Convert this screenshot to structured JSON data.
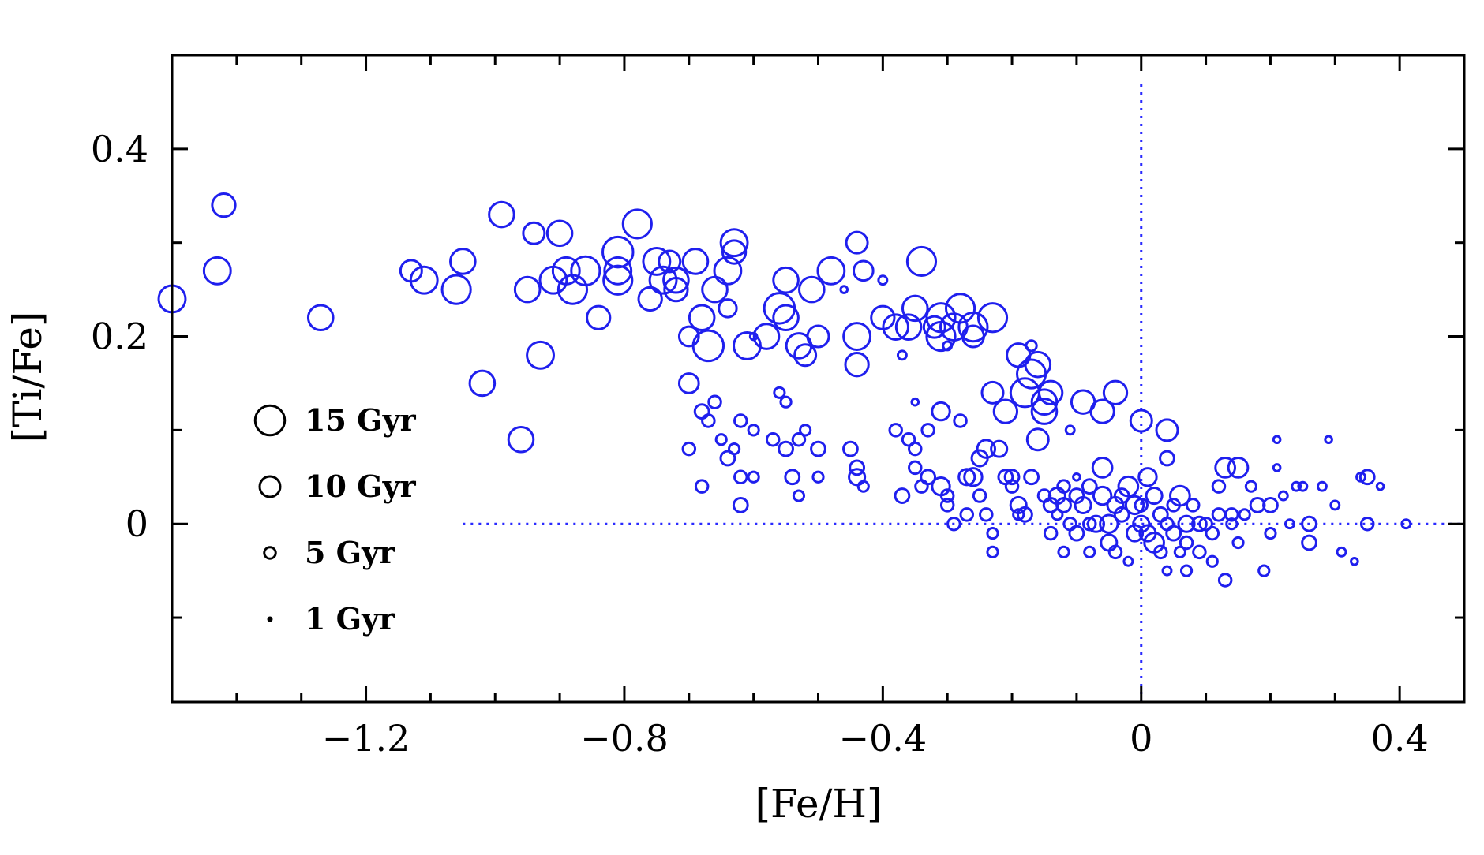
{
  "chart_data": {
    "type": "scatter",
    "title": "",
    "xlabel": "[Fe/H]",
    "ylabel": "[Ti/Fe]",
    "xlim": [
      -1.5,
      0.5
    ],
    "ylim": [
      -0.19,
      0.5
    ],
    "x_ticks": [
      {
        "value": -1.2,
        "label": "−1.2"
      },
      {
        "value": -0.8,
        "label": "−0.8"
      },
      {
        "value": -0.4,
        "label": "−0.4"
      },
      {
        "value": 0,
        "label": "0"
      },
      {
        "value": 0.4,
        "label": "0.4"
      }
    ],
    "y_ticks": [
      {
        "value": 0,
        "label": "0"
      },
      {
        "value": 0.2,
        "label": "0.2"
      },
      {
        "value": 0.4,
        "label": "0.4"
      }
    ],
    "reference_lines": [
      {
        "orientation": "horizontal",
        "value": 0,
        "from": -1.05,
        "to": 0.5,
        "style": "dotted",
        "color": "#2a2aff"
      },
      {
        "orientation": "vertical",
        "value": 0,
        "from": -0.19,
        "to": 0.47,
        "style": "dotted",
        "color": "#2a2aff"
      }
    ],
    "marker_color": "#1f1fee",
    "size_encodes": "age (Gyr)",
    "legend": [
      {
        "label": "15 Gyr",
        "age": 15
      },
      {
        "label": "10 Gyr",
        "age": 10
      },
      {
        "label": "5 Gyr",
        "age": 5
      },
      {
        "label": "1 Gyr",
        "age": 1
      }
    ],
    "legend_position": "left",
    "points": [
      {
        "x": -1.5,
        "y": 0.24,
        "age": 13
      },
      {
        "x": -1.43,
        "y": 0.27,
        "age": 13
      },
      {
        "x": -1.42,
        "y": 0.34,
        "age": 11
      },
      {
        "x": -1.27,
        "y": 0.22,
        "age": 12
      },
      {
        "x": -1.13,
        "y": 0.27,
        "age": 10
      },
      {
        "x": -1.11,
        "y": 0.26,
        "age": 13
      },
      {
        "x": -1.06,
        "y": 0.25,
        "age": 14
      },
      {
        "x": -1.05,
        "y": 0.28,
        "age": 12
      },
      {
        "x": -1.02,
        "y": 0.15,
        "age": 12
      },
      {
        "x": -0.99,
        "y": 0.33,
        "age": 12
      },
      {
        "x": -0.96,
        "y": 0.09,
        "age": 12
      },
      {
        "x": -0.95,
        "y": 0.25,
        "age": 12
      },
      {
        "x": -0.94,
        "y": 0.31,
        "age": 10
      },
      {
        "x": -0.93,
        "y": 0.18,
        "age": 13
      },
      {
        "x": -0.91,
        "y": 0.26,
        "age": 13
      },
      {
        "x": -0.9,
        "y": 0.31,
        "age": 12
      },
      {
        "x": -0.89,
        "y": 0.27,
        "age": 13
      },
      {
        "x": -0.88,
        "y": 0.25,
        "age": 14
      },
      {
        "x": -0.86,
        "y": 0.27,
        "age": 14
      },
      {
        "x": -0.84,
        "y": 0.22,
        "age": 11
      },
      {
        "x": -0.81,
        "y": 0.29,
        "age": 15
      },
      {
        "x": -0.81,
        "y": 0.26,
        "age": 14
      },
      {
        "x": -0.81,
        "y": 0.27,
        "age": 13
      },
      {
        "x": -0.78,
        "y": 0.32,
        "age": 14
      },
      {
        "x": -0.76,
        "y": 0.24,
        "age": 11
      },
      {
        "x": -0.75,
        "y": 0.28,
        "age": 13
      },
      {
        "x": -0.74,
        "y": 0.26,
        "age": 13
      },
      {
        "x": -0.73,
        "y": 0.28,
        "age": 10
      },
      {
        "x": -0.72,
        "y": 0.25,
        "age": 11
      },
      {
        "x": -0.72,
        "y": 0.26,
        "age": 12
      },
      {
        "x": -0.7,
        "y": 0.15,
        "age": 9
      },
      {
        "x": -0.7,
        "y": 0.2,
        "age": 9
      },
      {
        "x": -0.69,
        "y": 0.28,
        "age": 12
      },
      {
        "x": -0.68,
        "y": 0.22,
        "age": 12
      },
      {
        "x": -0.67,
        "y": 0.19,
        "age": 15
      },
      {
        "x": -0.66,
        "y": 0.25,
        "age": 12
      },
      {
        "x": -0.64,
        "y": 0.27,
        "age": 13
      },
      {
        "x": -0.63,
        "y": 0.3,
        "age": 13
      },
      {
        "x": -0.63,
        "y": 0.29,
        "age": 11
      },
      {
        "x": -0.64,
        "y": 0.23,
        "age": 8
      },
      {
        "x": -0.61,
        "y": 0.19,
        "age": 13
      },
      {
        "x": -0.58,
        "y": 0.2,
        "age": 12
      },
      {
        "x": -0.56,
        "y": 0.23,
        "age": 15
      },
      {
        "x": -0.55,
        "y": 0.26,
        "age": 12
      },
      {
        "x": -0.55,
        "y": 0.22,
        "age": 12
      },
      {
        "x": -0.53,
        "y": 0.19,
        "age": 12
      },
      {
        "x": -0.52,
        "y": 0.18,
        "age": 10
      },
      {
        "x": -0.51,
        "y": 0.25,
        "age": 12
      },
      {
        "x": -0.5,
        "y": 0.2,
        "age": 10
      },
      {
        "x": -0.48,
        "y": 0.27,
        "age": 13
      },
      {
        "x": -0.44,
        "y": 0.2,
        "age": 13
      },
      {
        "x": -0.44,
        "y": 0.17,
        "age": 11
      },
      {
        "x": -0.44,
        "y": 0.3,
        "age": 10
      },
      {
        "x": -0.43,
        "y": 0.27,
        "age": 9
      },
      {
        "x": -0.4,
        "y": 0.22,
        "age": 11
      },
      {
        "x": -0.38,
        "y": 0.21,
        "age": 12
      },
      {
        "x": -0.36,
        "y": 0.21,
        "age": 12
      },
      {
        "x": -0.35,
        "y": 0.23,
        "age": 12
      },
      {
        "x": -0.34,
        "y": 0.28,
        "age": 14
      },
      {
        "x": -0.32,
        "y": 0.21,
        "age": 10
      },
      {
        "x": -0.31,
        "y": 0.22,
        "age": 14
      },
      {
        "x": -0.31,
        "y": 0.2,
        "age": 14
      },
      {
        "x": -0.29,
        "y": 0.21,
        "age": 13
      },
      {
        "x": -0.28,
        "y": 0.23,
        "age": 14
      },
      {
        "x": -0.26,
        "y": 0.21,
        "age": 14
      },
      {
        "x": -0.26,
        "y": 0.2,
        "age": 10
      },
      {
        "x": -0.23,
        "y": 0.22,
        "age": 14
      },
      {
        "x": -0.23,
        "y": 0.14,
        "age": 10
      },
      {
        "x": -0.21,
        "y": 0.12,
        "age": 11
      },
      {
        "x": -0.19,
        "y": 0.18,
        "age": 11
      },
      {
        "x": -0.18,
        "y": 0.14,
        "age": 14
      },
      {
        "x": -0.17,
        "y": 0.16,
        "age": 14
      },
      {
        "x": -0.16,
        "y": 0.17,
        "age": 12
      },
      {
        "x": -0.15,
        "y": 0.13,
        "age": 12
      },
      {
        "x": -0.15,
        "y": 0.12,
        "age": 12
      },
      {
        "x": -0.14,
        "y": 0.14,
        "age": 11
      },
      {
        "x": -0.16,
        "y": 0.09,
        "age": 10
      },
      {
        "x": -0.09,
        "y": 0.13,
        "age": 11
      },
      {
        "x": -0.06,
        "y": 0.12,
        "age": 11
      },
      {
        "x": -0.04,
        "y": 0.14,
        "age": 11
      },
      {
        "x": 0.0,
        "y": 0.11,
        "age": 10
      },
      {
        "x": 0.04,
        "y": 0.1,
        "age": 10
      },
      {
        "x": -0.7,
        "y": 0.08,
        "age": 5
      },
      {
        "x": -0.68,
        "y": 0.12,
        "age": 6
      },
      {
        "x": -0.67,
        "y": 0.11,
        "age": 5
      },
      {
        "x": -0.66,
        "y": 0.13,
        "age": 5
      },
      {
        "x": -0.65,
        "y": 0.09,
        "age": 4
      },
      {
        "x": -0.64,
        "y": 0.07,
        "age": 6
      },
      {
        "x": -0.63,
        "y": 0.08,
        "age": 4
      },
      {
        "x": -0.62,
        "y": 0.11,
        "age": 5
      },
      {
        "x": -0.6,
        "y": 0.1,
        "age": 4
      },
      {
        "x": -0.62,
        "y": 0.05,
        "age": 5
      },
      {
        "x": -0.6,
        "y": 0.05,
        "age": 4
      },
      {
        "x": -0.62,
        "y": 0.02,
        "age": 6
      },
      {
        "x": -0.68,
        "y": 0.04,
        "age": 5
      },
      {
        "x": -0.56,
        "y": 0.14,
        "age": 4
      },
      {
        "x": -0.55,
        "y": 0.13,
        "age": 4
      },
      {
        "x": -0.57,
        "y": 0.09,
        "age": 5
      },
      {
        "x": -0.55,
        "y": 0.08,
        "age": 6
      },
      {
        "x": -0.53,
        "y": 0.09,
        "age": 5
      },
      {
        "x": -0.52,
        "y": 0.1,
        "age": 4
      },
      {
        "x": -0.5,
        "y": 0.08,
        "age": 6
      },
      {
        "x": -0.54,
        "y": 0.05,
        "age": 6
      },
      {
        "x": -0.53,
        "y": 0.03,
        "age": 4
      },
      {
        "x": -0.5,
        "y": 0.05,
        "age": 4
      },
      {
        "x": -0.45,
        "y": 0.08,
        "age": 6
      },
      {
        "x": -0.44,
        "y": 0.06,
        "age": 6
      },
      {
        "x": -0.44,
        "y": 0.05,
        "age": 7
      },
      {
        "x": -0.43,
        "y": 0.04,
        "age": 4
      },
      {
        "x": -0.38,
        "y": 0.1,
        "age": 5
      },
      {
        "x": -0.36,
        "y": 0.09,
        "age": 5
      },
      {
        "x": -0.35,
        "y": 0.08,
        "age": 5
      },
      {
        "x": -0.33,
        "y": 0.1,
        "age": 5
      },
      {
        "x": -0.37,
        "y": 0.03,
        "age": 6
      },
      {
        "x": -0.35,
        "y": 0.06,
        "age": 5
      },
      {
        "x": -0.34,
        "y": 0.04,
        "age": 5
      },
      {
        "x": -0.33,
        "y": 0.05,
        "age": 6
      },
      {
        "x": -0.31,
        "y": 0.04,
        "age": 8
      },
      {
        "x": -0.3,
        "y": 0.03,
        "age": 5
      },
      {
        "x": -0.31,
        "y": 0.12,
        "age": 8
      },
      {
        "x": -0.28,
        "y": 0.11,
        "age": 5
      },
      {
        "x": -0.27,
        "y": 0.05,
        "age": 7
      },
      {
        "x": -0.26,
        "y": 0.05,
        "age": 8
      },
      {
        "x": -0.25,
        "y": 0.07,
        "age": 7
      },
      {
        "x": -0.24,
        "y": 0.08,
        "age": 8
      },
      {
        "x": -0.22,
        "y": 0.08,
        "age": 7
      },
      {
        "x": -0.21,
        "y": 0.05,
        "age": 6
      },
      {
        "x": -0.2,
        "y": 0.04,
        "age": 5
      },
      {
        "x": -0.25,
        "y": 0.03,
        "age": 5
      },
      {
        "x": -0.24,
        "y": 0.01,
        "age": 5
      },
      {
        "x": -0.27,
        "y": 0.01,
        "age": 5
      },
      {
        "x": -0.29,
        "y": 0.0,
        "age": 5
      },
      {
        "x": -0.3,
        "y": 0.02,
        "age": 5
      },
      {
        "x": -0.23,
        "y": -0.01,
        "age": 4
      },
      {
        "x": -0.23,
        "y": -0.03,
        "age": 4
      },
      {
        "x": -0.2,
        "y": 0.05,
        "age": 6
      },
      {
        "x": -0.19,
        "y": 0.02,
        "age": 7
      },
      {
        "x": -0.18,
        "y": 0.01,
        "age": 6
      },
      {
        "x": -0.17,
        "y": 0.05,
        "age": 6
      },
      {
        "x": -0.15,
        "y": 0.03,
        "age": 5
      },
      {
        "x": -0.14,
        "y": 0.02,
        "age": 6
      },
      {
        "x": -0.13,
        "y": 0.03,
        "age": 7
      },
      {
        "x": -0.12,
        "y": 0.02,
        "age": 6
      },
      {
        "x": -0.12,
        "y": 0.04,
        "age": 5
      },
      {
        "x": -0.11,
        "y": 0.0,
        "age": 5
      },
      {
        "x": -0.1,
        "y": -0.01,
        "age": 6
      },
      {
        "x": -0.1,
        "y": 0.03,
        "age": 6
      },
      {
        "x": -0.09,
        "y": 0.02,
        "age": 7
      },
      {
        "x": -0.08,
        "y": 0.04,
        "age": 6
      },
      {
        "x": -0.07,
        "y": 0.0,
        "age": 7
      },
      {
        "x": -0.06,
        "y": 0.06,
        "age": 9
      },
      {
        "x": -0.06,
        "y": 0.03,
        "age": 8
      },
      {
        "x": -0.05,
        "y": 0.0,
        "age": 8
      },
      {
        "x": -0.05,
        "y": -0.02,
        "age": 7
      },
      {
        "x": -0.04,
        "y": 0.02,
        "age": 7
      },
      {
        "x": -0.03,
        "y": 0.03,
        "age": 6
      },
      {
        "x": -0.03,
        "y": 0.01,
        "age": 6
      },
      {
        "x": -0.02,
        "y": 0.04,
        "age": 9
      },
      {
        "x": -0.01,
        "y": -0.01,
        "age": 7
      },
      {
        "x": -0.01,
        "y": 0.02,
        "age": 8
      },
      {
        "x": 0.0,
        "y": 0.0,
        "age": 7
      },
      {
        "x": 0.01,
        "y": 0.05,
        "age": 8
      },
      {
        "x": 0.01,
        "y": -0.01,
        "age": 7
      },
      {
        "x": 0.02,
        "y": 0.03,
        "age": 7
      },
      {
        "x": 0.02,
        "y": -0.02,
        "age": 9
      },
      {
        "x": 0.03,
        "y": 0.01,
        "age": 6
      },
      {
        "x": 0.04,
        "y": 0.07,
        "age": 6
      },
      {
        "x": 0.04,
        "y": 0.0,
        "age": 5
      },
      {
        "x": 0.05,
        "y": -0.01,
        "age": 6
      },
      {
        "x": 0.05,
        "y": 0.02,
        "age": 5
      },
      {
        "x": 0.06,
        "y": 0.03,
        "age": 9
      },
      {
        "x": 0.07,
        "y": 0.0,
        "age": 7
      },
      {
        "x": 0.07,
        "y": -0.02,
        "age": 5
      },
      {
        "x": 0.08,
        "y": 0.02,
        "age": 5
      },
      {
        "x": 0.09,
        "y": 0.0,
        "age": 6
      },
      {
        "x": 0.09,
        "y": -0.03,
        "age": 5
      },
      {
        "x": 0.1,
        "y": 0.0,
        "age": 5
      },
      {
        "x": 0.11,
        "y": -0.01,
        "age": 5
      },
      {
        "x": 0.12,
        "y": 0.04,
        "age": 5
      },
      {
        "x": 0.12,
        "y": 0.01,
        "age": 5
      },
      {
        "x": 0.13,
        "y": 0.06,
        "age": 9
      },
      {
        "x": 0.13,
        "y": -0.06,
        "age": 5
      },
      {
        "x": 0.14,
        "y": 0.01,
        "age": 5
      },
      {
        "x": 0.15,
        "y": 0.06,
        "age": 9
      },
      {
        "x": 0.15,
        "y": -0.02,
        "age": 4
      },
      {
        "x": 0.16,
        "y": 0.01,
        "age": 4
      },
      {
        "x": 0.17,
        "y": 0.04,
        "age": 4
      },
      {
        "x": 0.18,
        "y": 0.02,
        "age": 6
      },
      {
        "x": 0.19,
        "y": -0.05,
        "age": 4
      },
      {
        "x": 0.2,
        "y": 0.02,
        "age": 6
      },
      {
        "x": 0.2,
        "y": -0.01,
        "age": 4
      },
      {
        "x": 0.21,
        "y": 0.09,
        "age": 2
      },
      {
        "x": 0.21,
        "y": 0.06,
        "age": 2
      },
      {
        "x": 0.22,
        "y": 0.03,
        "age": 3
      },
      {
        "x": 0.23,
        "y": 0.0,
        "age": 3
      },
      {
        "x": 0.24,
        "y": 0.04,
        "age": 3
      },
      {
        "x": 0.25,
        "y": 0.04,
        "age": 3
      },
      {
        "x": 0.26,
        "y": -0.02,
        "age": 6
      },
      {
        "x": 0.26,
        "y": 0.0,
        "age": 6
      },
      {
        "x": 0.28,
        "y": 0.04,
        "age": 3
      },
      {
        "x": 0.29,
        "y": 0.09,
        "age": 2
      },
      {
        "x": 0.3,
        "y": 0.02,
        "age": 3
      },
      {
        "x": 0.31,
        "y": -0.03,
        "age": 3
      },
      {
        "x": 0.33,
        "y": -0.04,
        "age": 2
      },
      {
        "x": 0.34,
        "y": 0.05,
        "age": 3
      },
      {
        "x": 0.35,
        "y": 0.05,
        "age": 6
      },
      {
        "x": 0.35,
        "y": 0.0,
        "age": 5
      },
      {
        "x": 0.37,
        "y": 0.04,
        "age": 2
      },
      {
        "x": 0.41,
        "y": 0.0,
        "age": 3
      },
      {
        "x": -0.6,
        "y": 0.2,
        "age": 2
      },
      {
        "x": -0.46,
        "y": 0.25,
        "age": 2
      },
      {
        "x": -0.4,
        "y": 0.26,
        "age": 3
      },
      {
        "x": -0.37,
        "y": 0.18,
        "age": 3
      },
      {
        "x": -0.35,
        "y": 0.13,
        "age": 2
      },
      {
        "x": -0.3,
        "y": 0.19,
        "age": 3
      },
      {
        "x": -0.17,
        "y": 0.19,
        "age": 4
      },
      {
        "x": -0.11,
        "y": 0.1,
        "age": 3
      },
      {
        "x": -0.1,
        "y": 0.05,
        "age": 2
      },
      {
        "x": -0.08,
        "y": -0.03,
        "age": 4
      },
      {
        "x": -0.02,
        "y": -0.04,
        "age": 3
      },
      {
        "x": 0.04,
        "y": -0.05,
        "age": 3
      },
      {
        "x": 0.07,
        "y": -0.05,
        "age": 4
      },
      {
        "x": 0.11,
        "y": -0.04,
        "age": 4
      },
      {
        "x": -0.12,
        "y": -0.03,
        "age": 4
      },
      {
        "x": -0.08,
        "y": 0.0,
        "age": 5
      },
      {
        "x": -0.14,
        "y": -0.01,
        "age": 5
      },
      {
        "x": 0.0,
        "y": 0.02,
        "age": 5
      },
      {
        "x": 0.03,
        "y": -0.03,
        "age": 5
      },
      {
        "x": 0.14,
        "y": 0.0,
        "age": 4
      },
      {
        "x": -0.04,
        "y": -0.03,
        "age": 5
      },
      {
        "x": 0.06,
        "y": -0.03,
        "age": 4
      },
      {
        "x": -0.19,
        "y": 0.01,
        "age": 4
      },
      {
        "x": -0.13,
        "y": 0.01,
        "age": 4
      }
    ]
  }
}
